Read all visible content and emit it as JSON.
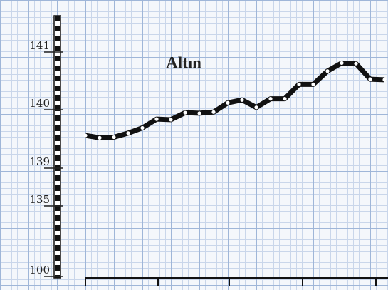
{
  "chart_data": {
    "type": "line",
    "title": "Altın",
    "categories": [
      null,
      null,
      null,
      null,
      null,
      null,
      null,
      null,
      null,
      null,
      null,
      null,
      null,
      null,
      null,
      null,
      null,
      null,
      null,
      null,
      null,
      null
    ],
    "series": [
      {
        "color": "#111111",
        "values": [
          139.56,
          139.52,
          139.53,
          139.6,
          139.69,
          139.84,
          139.83,
          139.95,
          139.94,
          139.96,
          140.12,
          140.17,
          140.04,
          140.19,
          140.19,
          140.44,
          140.44,
          140.67,
          140.81,
          140.8,
          140.53,
          140.52
        ]
      }
    ],
    "ylim": [
      100,
      141.6
    ],
    "yticks": [
      141,
      140,
      139,
      135,
      100
    ]
  }
}
